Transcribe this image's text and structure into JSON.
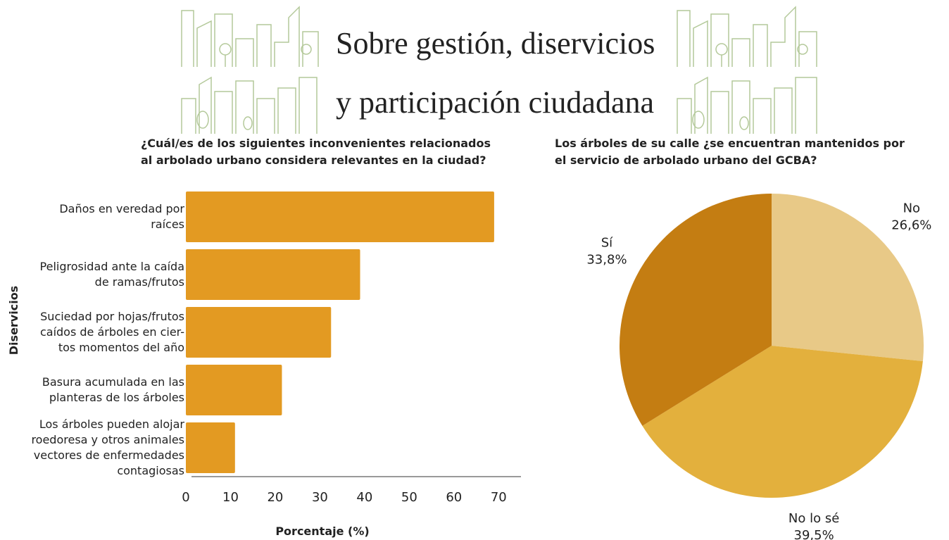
{
  "header": {
    "title_lines": [
      "Sobre gestión, diservicios",
      "y participación ciudadana"
    ]
  },
  "chart_data": [
    {
      "type": "bar",
      "orientation": "horizontal",
      "title": "¿Cuál/es de los siguientes inconvenientes relacionados\nal arbolado urbano considera relevantes en la ciudad?",
      "y_label": "Diservicios",
      "x_label": "Porcentaje (%)",
      "categories": [
        "Daños en veredad por\nraíces",
        "Peligrosidad ante la caída\nde ramas/frutos",
        "Suciedad por hojas/frutos\ncaídos de árboles en cier-\ntos momentos del año",
        "Basura acumulada en las\nplanteras de los árboles",
        "Los árboles pueden alojar\nroedoresa y otros animales\nvectores de enfermedades\ncontagiosas"
      ],
      "values": [
        69,
        39,
        32.5,
        21.5,
        11
      ],
      "color": "#e39a22",
      "xlim": [
        0,
        75
      ],
      "xticks": [
        0,
        10,
        20,
        30,
        40,
        50,
        60,
        70
      ],
      "grid": false
    },
    {
      "type": "pie",
      "title": "Los árboles de su calle ¿se encuentran mantenidos por\nel servicio de arbolado urbano del GCBA?",
      "categories": [
        "No",
        "No lo sé",
        "Sí"
      ],
      "values": [
        26.6,
        39.5,
        33.8
      ],
      "value_labels": [
        "26,6%",
        "39,5%",
        "33,8%"
      ],
      "colors": [
        "#e8c987",
        "#e3b03d",
        "#c47d12"
      ]
    }
  ]
}
